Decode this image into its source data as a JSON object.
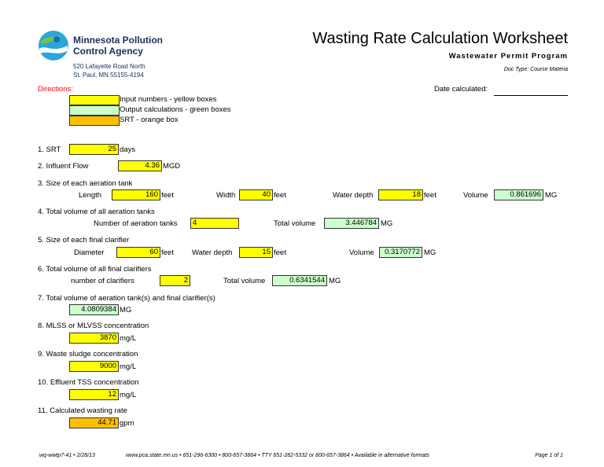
{
  "header": {
    "org_line1": "Minnesota Pollution",
    "org_line2": "Control Agency",
    "addr_line1": "520 Lafayette Road North",
    "addr_line2": "St. Paul, MN 55155-4194",
    "title": "Wasting Rate Calculation Worksheet",
    "subtitle": "Wastewater Permit Program",
    "doc_type": "Doc Type: Course Materia",
    "date_label": "Date calculated:",
    "date_value": ""
  },
  "directions": {
    "label": "Directions:",
    "input_desc": "Input numbers - yellow boxes",
    "output_desc": "Output calculations - green boxes",
    "srt_desc": "SRT - orange box"
  },
  "q1": {
    "label": "1. SRT",
    "value": "25",
    "unit": "days"
  },
  "q2": {
    "label": "2. Influent Flow",
    "value": "4.36",
    "unit": "MGD"
  },
  "q3": {
    "label": "3. Size of each aeration tank",
    "length_label": "Length",
    "length_value": "160",
    "length_unit": "feet",
    "width_label": "Width",
    "width_value": "40",
    "width_unit": "feet",
    "depth_label": "Water depth",
    "depth_value": "18",
    "depth_unit": "feet",
    "volume_label": "Volume",
    "volume_value": "0.861696",
    "volume_unit": "MG"
  },
  "q4": {
    "label": "4. Total volume of all aeration tanks",
    "num_label": "Number of aeration tanks",
    "num_value": "4",
    "total_label": "Total volume",
    "total_value": "3.446784",
    "total_unit": "MG"
  },
  "q5": {
    "label": "5. Size of each final clarifier",
    "diam_label": "Diameter",
    "diam_value": "60",
    "diam_unit": "feet",
    "depth_label": "Water depth",
    "depth_value": "15",
    "depth_unit": "feet",
    "volume_label": "Volume",
    "volume_value": "0.3170772",
    "volume_unit": "MG"
  },
  "q6": {
    "label": "6. Total volume of all final clarifiers",
    "num_label": "number of clarifiers",
    "num_value": "2",
    "total_label": "Total volume",
    "total_value": "0.6341544",
    "total_unit": "MG"
  },
  "q7": {
    "label": "7. Total volume of aeration tank(s) and final clarifier(s)",
    "value": "4.0809384",
    "unit": "MG"
  },
  "q8": {
    "label": "8. MLSS  or MLVSS concentration",
    "value": "3870",
    "unit": "mg/L"
  },
  "q9": {
    "label": "9. Waste sludge concentration",
    "value": "9000",
    "unit": "mg/L"
  },
  "q10": {
    "label": "10. Effluent TSS concentration",
    "value": "12",
    "unit": "mg/L"
  },
  "q11": {
    "label": "11. Calculated wasting rate",
    "value": "44.71",
    "unit": "gpm"
  },
  "footer": {
    "doc_id": "wq-wwtp7-41  •  2/28/13",
    "contact": "www.pca.state.mn.us  •  651-296-6300  •  800-657-3864  •  TTY 651-282-5332 or 800-657-3864  •  Available in alternative formats",
    "page": "Page 1 of 1"
  },
  "colors": {
    "input": "#ffff00",
    "output": "#ccffcc",
    "srt": "#ffc000",
    "directions": "#ff0000",
    "brand": "#1a2e5a"
  },
  "icons": {
    "logo": "mpca-logo-icon"
  }
}
